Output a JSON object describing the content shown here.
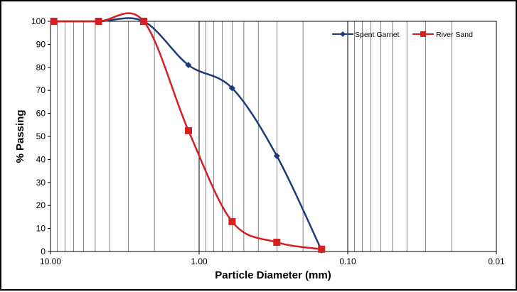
{
  "chart_data": {
    "type": "line",
    "x_scale": "log",
    "x_reversed": true,
    "xlabel": "Particle Diameter (mm)",
    "ylabel": "% Passing",
    "xlim": [
      10,
      0.01
    ],
    "ylim": [
      0,
      100
    ],
    "x_ticks": [
      10,
      1,
      0.1,
      0.01
    ],
    "x_tick_labels": [
      "10.00",
      "1.00",
      "0.10",
      "0.01"
    ],
    "y_ticks": [
      0,
      10,
      20,
      30,
      40,
      50,
      60,
      70,
      80,
      90,
      100
    ],
    "y_tick_labels": [
      "0",
      "10",
      "20",
      "30",
      "40",
      "50",
      "60",
      "70",
      "80",
      "90",
      "100"
    ],
    "grid": "vertical log gridlines",
    "legend_position": "top-right",
    "series": [
      {
        "name": "Spent Garnet",
        "color": "#1f3b7a",
        "marker": "diamond",
        "x": [
          9.5,
          4.75,
          2.36,
          1.18,
          0.6,
          0.3,
          0.15
        ],
        "y": [
          100,
          100,
          100,
          81,
          71,
          41.5,
          0.5
        ]
      },
      {
        "name": "River Sand",
        "color": "#d42020",
        "marker": "square",
        "x": [
          9.5,
          4.75,
          2.36,
          1.18,
          0.6,
          0.3,
          0.15
        ],
        "y": [
          100,
          100,
          100,
          52.5,
          13,
          4,
          1
        ]
      }
    ]
  }
}
